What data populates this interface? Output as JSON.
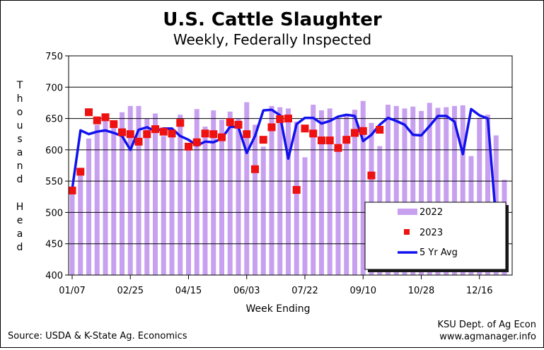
{
  "chart_data": {
    "type": "bar",
    "title": "U.S. Cattle Slaughter",
    "subtitle": "Weekly, Federally Inspected",
    "xlabel": "Week Ending",
    "ylabel": "Thousand Head",
    "ylim": [
      400,
      750
    ],
    "yticks": [
      400,
      450,
      500,
      550,
      600,
      650,
      700,
      750
    ],
    "xtick_labels": [
      "01/07",
      "02/25",
      "04/15",
      "06/03",
      "07/22",
      "09/10",
      "10/28",
      "12/16"
    ],
    "xtick_weeks": [
      1,
      8,
      15,
      22,
      29,
      36,
      43,
      50
    ],
    "grid": true,
    "legend_position": "bottom-right",
    "source": "Source:  USDA & K-State Ag. Economics",
    "credit_line1": "KSU Dept. of Ag Econ",
    "credit_line2": "www.agmanager.info",
    "colors": {
      "bar": "#c8a0f0",
      "marker": "#ee1111",
      "line": "#1111ee",
      "plot_bg": "#ffffff"
    },
    "series": [
      {
        "name": "2022",
        "kind": "bar",
        "values": [
          535,
          563,
          618,
          640,
          652,
          645,
          660,
          670,
          670,
          650,
          658,
          622,
          631,
          656,
          610,
          665,
          637,
          663,
          648,
          661,
          650,
          676,
          640,
          605,
          670,
          668,
          666,
          645,
          588,
          672,
          663,
          666,
          650,
          655,
          664,
          678,
          643,
          606,
          672,
          670,
          666,
          669,
          662,
          675,
          667,
          668,
          670,
          671,
          590,
          651,
          656,
          623,
          552
        ]
      },
      {
        "name": "2023",
        "kind": "marker",
        "values": [
          535,
          565,
          660,
          647,
          652,
          641,
          628,
          625,
          613,
          625,
          633,
          629,
          626,
          643,
          605,
          612,
          626,
          625,
          620,
          644,
          640,
          625,
          569,
          616,
          636,
          649,
          650,
          536,
          634,
          626,
          615,
          615,
          603,
          616,
          627,
          630,
          559,
          632
        ]
      },
      {
        "name": "5 Yr Avg",
        "kind": "line",
        "values": [
          537,
          631,
          625,
          629,
          631,
          627,
          622,
          600,
          632,
          636,
          630,
          634,
          634,
          622,
          616,
          607,
          613,
          612,
          618,
          637,
          636,
          595,
          622,
          663,
          664,
          655,
          586,
          641,
          651,
          651,
          642,
          646,
          653,
          656,
          654,
          614,
          624,
          640,
          651,
          646,
          640,
          624,
          623,
          638,
          654,
          654,
          645,
          593,
          665,
          655,
          650,
          487
        ]
      }
    ]
  }
}
